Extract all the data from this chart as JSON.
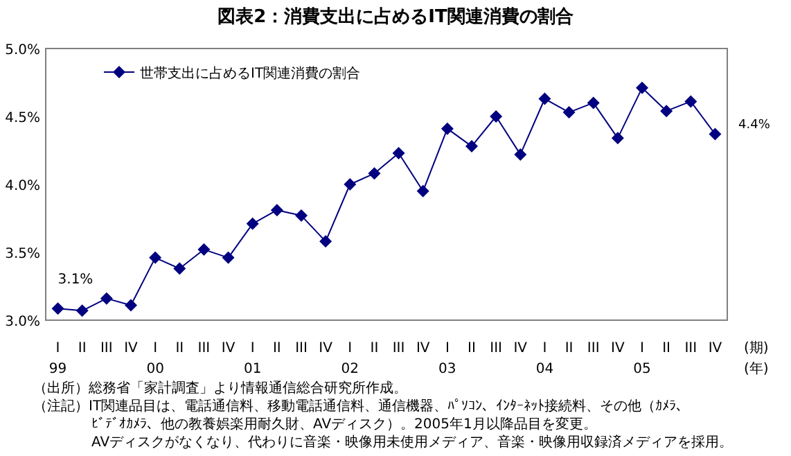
{
  "chart_data": {
    "type": "line",
    "title": "図表2：消費支出に占めるIT関連消費の割合",
    "categories": [
      "I\n99",
      "II",
      "III",
      "IV",
      "I\n00",
      "II",
      "III",
      "IV",
      "I\n01",
      "II",
      "III",
      "IV",
      "I\n02",
      "II",
      "III",
      "IV",
      "I\n03",
      "II",
      "III",
      "IV",
      "I\n04",
      "II",
      "III",
      "IV",
      "I\n05",
      "II",
      "III",
      "IV"
    ],
    "series": [
      {
        "name": "世帯支出に占めるIT関連消費の割合",
        "color": "#000080",
        "values": [
          3.085,
          3.07,
          3.16,
          3.11,
          3.46,
          3.38,
          3.52,
          3.46,
          3.71,
          3.81,
          3.77,
          3.58,
          4.0,
          4.08,
          4.23,
          3.95,
          4.41,
          4.28,
          4.5,
          4.22,
          4.63,
          4.53,
          4.6,
          4.34,
          4.71,
          4.54,
          4.61,
          4.37
        ],
        "value_labels": [
          "3.1%",
          null,
          null,
          null,
          null,
          null,
          null,
          null,
          null,
          null,
          null,
          null,
          null,
          null,
          null,
          null,
          null,
          null,
          null,
          null,
          null,
          null,
          null,
          null,
          null,
          null,
          null,
          "4.4%"
        ]
      }
    ],
    "ylim": [
      3.0,
      5.0
    ],
    "yticks": [
      {
        "value": 3.0,
        "label": "3.0%"
      },
      {
        "value": 3.5,
        "label": "3.5%"
      },
      {
        "value": 4.0,
        "label": "4.0%"
      },
      {
        "value": 4.5,
        "label": "4.5%"
      },
      {
        "value": 5.0,
        "label": "5.0%"
      }
    ],
    "xlabel": "(期)",
    "marker": "diamond",
    "line_style": "solid",
    "legend": "top left",
    "grid": false,
    "annotations": [
      "(年)",
      "（出所）総務省「家計調査」より情報通信総合研究所作成。",
      "（注記）IT関連品目は、電話通信料、移動電話通信料、通信機器、ﾊﾟｿｺﾝ、ｲﾝﾀｰﾈｯﾄ接続料、その他（ｶﾒﾗ、",
      "ﾋﾞﾃﾞｵｶﾒﾗ、他の教養娯楽用耐久財、AVディスク）。2005年1月以降品目を変更。",
      "AVディスクがなくなり、代わりに音楽・映像用未使用メディア、音楽・映像用収録済メディアを採用。"
    ]
  }
}
